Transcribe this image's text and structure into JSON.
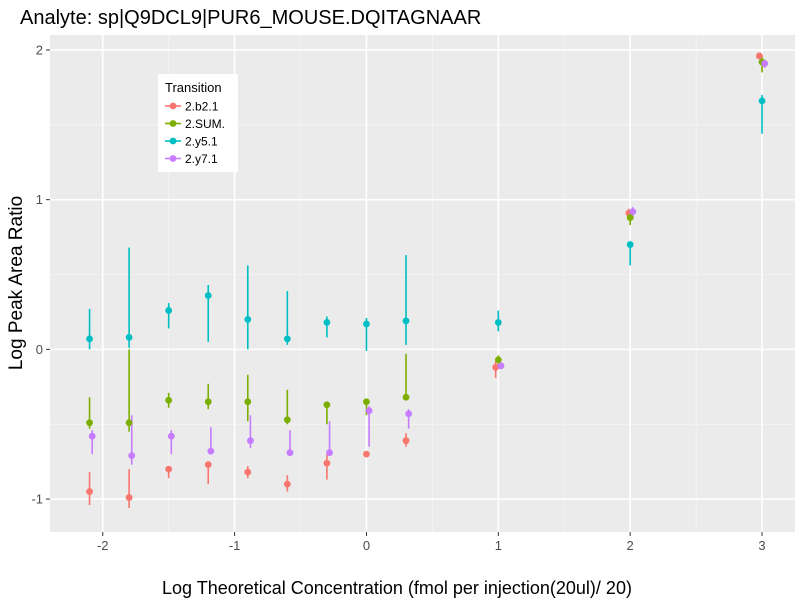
{
  "chart_data": {
    "type": "scatter",
    "title": "Analyte: sp|Q9DCL9|PUR6_MOUSE.DQITAGNAAR",
    "xlabel": "Log Theoretical Concentration (fmol per injection(20ul)/ 20)",
    "ylabel": "Log Peak Area Ratio",
    "xlim": [
      -2.4,
      3.25
    ],
    "ylim": [
      -1.22,
      2.1
    ],
    "x_ticks": [
      -2,
      -1,
      0,
      1,
      2,
      3
    ],
    "x_tick_labels": [
      "-2",
      "-1",
      "0",
      "1",
      "2",
      "3"
    ],
    "y_ticks": [
      -1,
      0,
      1,
      2
    ],
    "y_tick_labels": [
      "-1",
      "0",
      "1",
      "2"
    ],
    "grid": true,
    "error_bars": true,
    "legend": {
      "title": "Transition",
      "placement": "top-left"
    },
    "series": [
      {
        "name": "2.b2.1",
        "color": "#F8766D",
        "points": [
          {
            "x": -2.1,
            "y": -0.95,
            "lo": -1.04,
            "hi": -0.82
          },
          {
            "x": -1.8,
            "y": -0.99,
            "lo": -1.06,
            "hi": -0.8
          },
          {
            "x": -1.5,
            "y": -0.8,
            "lo": -0.86,
            "hi": -0.78
          },
          {
            "x": -1.2,
            "y": -0.77,
            "lo": -0.9,
            "hi": -0.75
          },
          {
            "x": -0.9,
            "y": -0.82,
            "lo": -0.86,
            "hi": -0.78
          },
          {
            "x": -0.6,
            "y": -0.9,
            "lo": -0.95,
            "hi": -0.84
          },
          {
            "x": -0.3,
            "y": -0.76,
            "lo": -0.87,
            "hi": -0.7
          },
          {
            "x": 0.0,
            "y": -0.7,
            "lo": -0.72,
            "hi": -0.68
          },
          {
            "x": 0.3,
            "y": -0.61,
            "lo": -0.65,
            "hi": -0.56
          },
          {
            "x": 0.98,
            "y": -0.12,
            "lo": -0.19,
            "hi": -0.08
          },
          {
            "x": 1.99,
            "y": 0.91,
            "lo": 0.89,
            "hi": 0.94
          },
          {
            "x": 2.98,
            "y": 1.96,
            "lo": 1.94,
            "hi": 1.98
          }
        ]
      },
      {
        "name": "2.SUM.",
        "color": "#7CAE00",
        "points": [
          {
            "x": -2.1,
            "y": -0.49,
            "lo": -0.53,
            "hi": -0.32
          },
          {
            "x": -1.8,
            "y": -0.49,
            "lo": -0.55,
            "hi": 0.0
          },
          {
            "x": -1.5,
            "y": -0.34,
            "lo": -0.39,
            "hi": -0.29
          },
          {
            "x": -1.2,
            "y": -0.35,
            "lo": -0.4,
            "hi": -0.23
          },
          {
            "x": -0.9,
            "y": -0.35,
            "lo": -0.48,
            "hi": -0.17
          },
          {
            "x": -0.6,
            "y": -0.47,
            "lo": -0.5,
            "hi": -0.27
          },
          {
            "x": -0.3,
            "y": -0.37,
            "lo": -0.5,
            "hi": -0.36
          },
          {
            "x": 0.0,
            "y": -0.35,
            "lo": -0.44,
            "hi": -0.33
          },
          {
            "x": 0.3,
            "y": -0.32,
            "lo": -0.34,
            "hi": -0.03
          },
          {
            "x": 1.0,
            "y": -0.07,
            "lo": -0.1,
            "hi": -0.04
          },
          {
            "x": 2.0,
            "y": 0.88,
            "lo": 0.83,
            "hi": 0.91
          },
          {
            "x": 3.0,
            "y": 1.92,
            "lo": 1.85,
            "hi": 1.96
          }
        ]
      },
      {
        "name": "2.y5.1",
        "color": "#00BFC4",
        "points": [
          {
            "x": -2.1,
            "y": 0.07,
            "lo": 0.0,
            "hi": 0.27
          },
          {
            "x": -1.8,
            "y": 0.08,
            "lo": 0.01,
            "hi": 0.68
          },
          {
            "x": -1.5,
            "y": 0.26,
            "lo": 0.14,
            "hi": 0.31
          },
          {
            "x": -1.2,
            "y": 0.36,
            "lo": 0.05,
            "hi": 0.43
          },
          {
            "x": -0.9,
            "y": 0.2,
            "lo": 0.0,
            "hi": 0.56
          },
          {
            "x": -0.6,
            "y": 0.07,
            "lo": 0.03,
            "hi": 0.39
          },
          {
            "x": -0.3,
            "y": 0.18,
            "lo": 0.08,
            "hi": 0.22
          },
          {
            "x": 0.0,
            "y": 0.17,
            "lo": -0.01,
            "hi": 0.21
          },
          {
            "x": 0.3,
            "y": 0.19,
            "lo": 0.03,
            "hi": 0.63
          },
          {
            "x": 1.0,
            "y": 0.18,
            "lo": 0.12,
            "hi": 0.26
          },
          {
            "x": 2.0,
            "y": 0.7,
            "lo": 0.56,
            "hi": 0.72
          },
          {
            "x": 3.0,
            "y": 1.66,
            "lo": 1.44,
            "hi": 1.7
          }
        ]
      },
      {
        "name": "2.y7.1",
        "color": "#C77CFF",
        "points": [
          {
            "x": -2.08,
            "y": -0.58,
            "lo": -0.7,
            "hi": -0.54
          },
          {
            "x": -1.78,
            "y": -0.71,
            "lo": -0.77,
            "hi": -0.44
          },
          {
            "x": -1.48,
            "y": -0.58,
            "lo": -0.7,
            "hi": -0.54
          },
          {
            "x": -1.18,
            "y": -0.68,
            "lo": -0.69,
            "hi": -0.52
          },
          {
            "x": -0.88,
            "y": -0.61,
            "lo": -0.66,
            "hi": -0.44
          },
          {
            "x": -0.58,
            "y": -0.69,
            "lo": -0.71,
            "hi": -0.54
          },
          {
            "x": -0.28,
            "y": -0.69,
            "lo": -0.7,
            "hi": -0.48
          },
          {
            "x": 0.02,
            "y": -0.41,
            "lo": -0.65,
            "hi": -0.38
          },
          {
            "x": 0.32,
            "y": -0.43,
            "lo": -0.53,
            "hi": -0.4
          },
          {
            "x": 1.02,
            "y": -0.11,
            "lo": -0.13,
            "hi": -0.09
          },
          {
            "x": 2.02,
            "y": 0.92,
            "lo": 0.87,
            "hi": 0.95
          },
          {
            "x": 3.02,
            "y": 1.91,
            "lo": 1.88,
            "hi": 1.93
          }
        ]
      }
    ]
  }
}
